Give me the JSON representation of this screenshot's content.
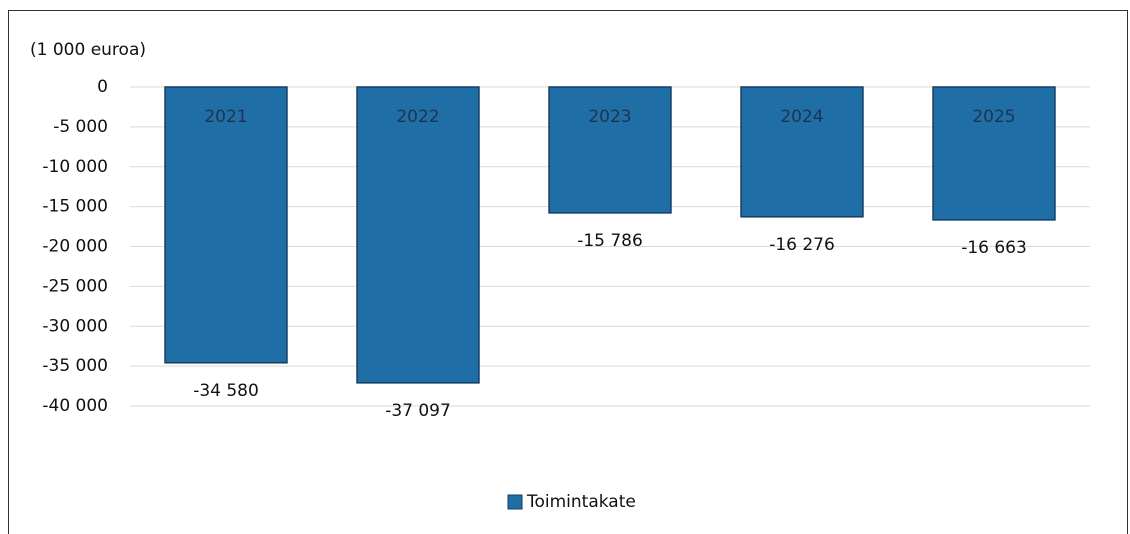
{
  "chart_data": {
    "type": "bar",
    "y_label": "(1 000 euroa)",
    "categories": [
      "2021",
      "2022",
      "2023",
      "2024",
      "2025"
    ],
    "series": [
      {
        "name": "Toimintakate",
        "color": "#1f6ea6",
        "values": [
          -34580,
          -37097,
          -15786,
          -16276,
          -16663
        ],
        "value_labels": [
          "-34 580",
          "-37 097",
          "-15 786",
          "-16 276",
          "-16 663"
        ]
      }
    ],
    "ylim": [
      -40000,
      0
    ],
    "yticks": [
      0,
      {
        "value": -5000,
        "label": "-5 000"
      },
      {
        "value": -10000,
        "label": "-10 000"
      },
      {
        "value": -15000,
        "label": "-15 000"
      },
      {
        "value": -20000,
        "label": "-20 000"
      },
      {
        "value": -25000,
        "label": "-25 000"
      },
      {
        "value": -30000,
        "label": "-30 000"
      },
      {
        "value": -35000,
        "label": "-35 000"
      },
      {
        "value": -40000,
        "label": "-40 000"
      }
    ],
    "grid": true,
    "legend": "bottom"
  }
}
